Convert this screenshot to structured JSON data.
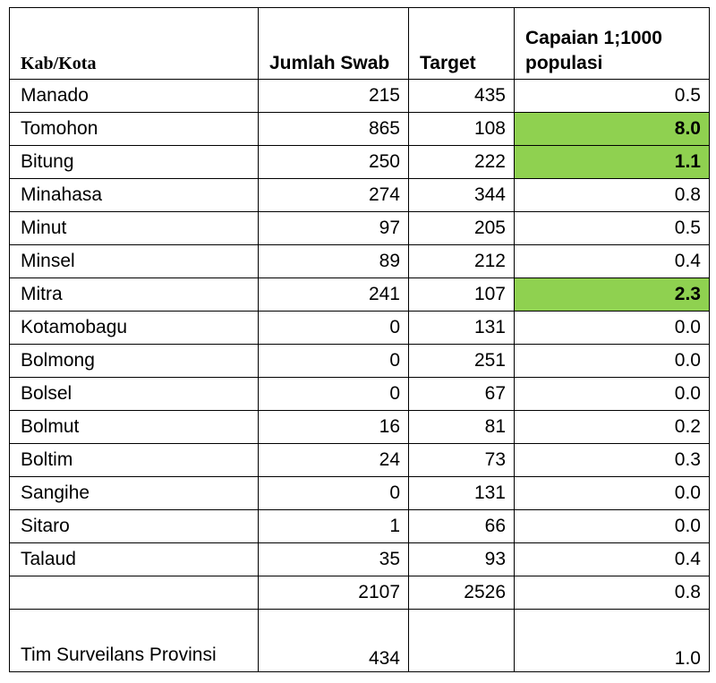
{
  "headers": {
    "kab": "Kab/Kota",
    "swab": "Jumlah Swab",
    "target": "Target",
    "capaian": "Capaian 1;1000 populasi"
  },
  "rows": [
    {
      "name": "Manado",
      "swab": "215",
      "target": "435",
      "capaian": "0.5",
      "highlight": false
    },
    {
      "name": "Tomohon",
      "swab": "865",
      "target": "108",
      "capaian": "8.0",
      "highlight": true
    },
    {
      "name": "Bitung",
      "swab": "250",
      "target": "222",
      "capaian": "1.1",
      "highlight": true
    },
    {
      "name": "Minahasa",
      "swab": "274",
      "target": "344",
      "capaian": "0.8",
      "highlight": false
    },
    {
      "name": "Minut",
      "swab": "97",
      "target": "205",
      "capaian": "0.5",
      "highlight": false
    },
    {
      "name": "Minsel",
      "swab": "89",
      "target": "212",
      "capaian": "0.4",
      "highlight": false
    },
    {
      "name": "Mitra",
      "swab": "241",
      "target": "107",
      "capaian": "2.3",
      "highlight": true
    },
    {
      "name": "Kotamobagu",
      "swab": "0",
      "target": "131",
      "capaian": "0.0",
      "highlight": false
    },
    {
      "name": "Bolmong",
      "swab": "0",
      "target": "251",
      "capaian": "0.0",
      "highlight": false
    },
    {
      "name": "Bolsel",
      "swab": "0",
      "target": "67",
      "capaian": "0.0",
      "highlight": false
    },
    {
      "name": "Bolmut",
      "swab": "16",
      "target": "81",
      "capaian": "0.2",
      "highlight": false
    },
    {
      "name": "Boltim",
      "swab": "24",
      "target": "73",
      "capaian": "0.3",
      "highlight": false
    },
    {
      "name": "Sangihe",
      "swab": "0",
      "target": "131",
      "capaian": "0.0",
      "highlight": false
    },
    {
      "name": "Sitaro",
      "swab": "1",
      "target": "66",
      "capaian": "0.0",
      "highlight": false
    },
    {
      "name": "Talaud",
      "swab": "35",
      "target": "93",
      "capaian": "0.4",
      "highlight": false
    },
    {
      "name": "",
      "swab": "2107",
      "target": "2526",
      "capaian": "0.8",
      "highlight": false
    }
  ],
  "province": {
    "name": "Tim Surveilans Provinsi",
    "swab": "434",
    "target": "",
    "capaian": "1.0"
  },
  "colors": {
    "highlight": "#8fd150",
    "border": "#000000"
  }
}
